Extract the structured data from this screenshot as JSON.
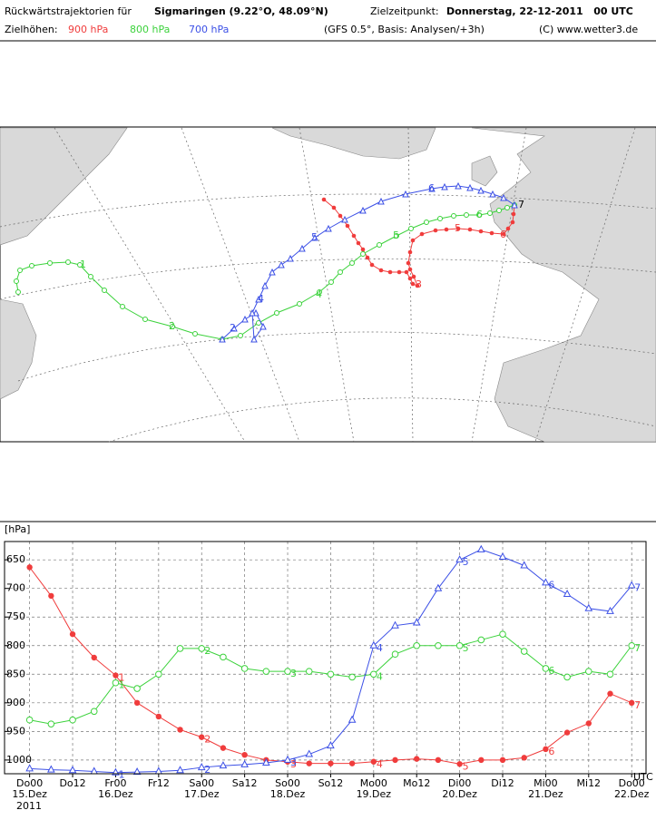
{
  "header": {
    "prefix": "Rückwärtstrajektorien für",
    "location": "Sigmaringen (9.22°O, 48.09°N)",
    "target_label": "Zielzeitpunkt:",
    "target_time": "Donnerstag, 22-12-2011   00 UTC",
    "levels_label": "Zielhöhen:",
    "level_900": "900 hPa",
    "level_800": "800 hPa",
    "level_700": "700 hPa",
    "model": "(GFS 0.5°, Basis: Analysen/+3h)",
    "copyright": "(C) www.wetter3.de"
  },
  "chart_data": {
    "type": "line",
    "y_label": "[hPa]",
    "x_unit": "UTC",
    "year": "2011",
    "x": [
      0,
      6,
      12,
      18,
      24,
      30,
      36,
      42,
      48,
      54,
      60,
      66,
      72,
      78,
      84,
      90,
      96,
      102,
      108,
      114,
      120,
      126,
      132,
      138,
      144,
      150,
      156,
      162,
      168
    ],
    "xlim": [
      -7,
      172
    ],
    "xticks": [
      {
        "value": 0,
        "label": "Do00"
      },
      {
        "value": 12,
        "label": "Do12"
      },
      {
        "value": 24,
        "label": "Fr00"
      },
      {
        "value": 36,
        "label": "Fr12"
      },
      {
        "value": 48,
        "label": "Sa00"
      },
      {
        "value": 60,
        "label": "Sa12"
      },
      {
        "value": 72,
        "label": "So00"
      },
      {
        "value": 84,
        "label": "So12"
      },
      {
        "value": 96,
        "label": "Mo00"
      },
      {
        "value": 108,
        "label": "Mo12"
      },
      {
        "value": 120,
        "label": "Di00"
      },
      {
        "value": 132,
        "label": "Di12"
      },
      {
        "value": 144,
        "label": "Mi00"
      },
      {
        "value": 156,
        "label": "Mi12"
      },
      {
        "value": 168,
        "label": "Do00"
      }
    ],
    "date_labels": [
      "15.Dez",
      "16.Dez",
      "17.Dez",
      "18.Dez",
      "19.Dez",
      "20.Dez",
      "21.Dez",
      "22.Dez"
    ],
    "ylim": [
      1024,
      618
    ],
    "yticks": [
      650,
      700,
      750,
      800,
      850,
      900,
      950,
      1000
    ],
    "grid": true,
    "day_labels": [
      "1",
      "2",
      "3",
      "4",
      "5",
      "6",
      "7"
    ],
    "series": [
      {
        "name": "900 hPa",
        "color": "#f03c3c",
        "values": [
          663,
          713,
          780,
          821,
          852,
          900,
          924,
          947,
          960,
          979,
          991,
          1000,
          1003,
          1006,
          1006,
          1006,
          1003,
          1000,
          998,
          1000,
          1007,
          1000,
          1000,
          996,
          981,
          952,
          936,
          884,
          900
        ]
      },
      {
        "name": "800 hPa",
        "color": "#3cd23c",
        "values": [
          930,
          937,
          930,
          915,
          865,
          875,
          850,
          805,
          805,
          820,
          840,
          845,
          845,
          845,
          850,
          855,
          850,
          815,
          800,
          800,
          800,
          790,
          780,
          810,
          840,
          855,
          845,
          850,
          800
        ]
      },
      {
        "name": "700 hPa",
        "color": "#3c50e6",
        "values": [
          1015,
          1017,
          1018,
          1020,
          1022,
          1021,
          1020,
          1018,
          1013,
          1010,
          1008,
          1005,
          1000,
          990,
          975,
          930,
          800,
          765,
          760,
          700,
          650,
          632,
          645,
          660,
          690,
          710,
          735,
          740,
          695
        ]
      }
    ]
  }
}
